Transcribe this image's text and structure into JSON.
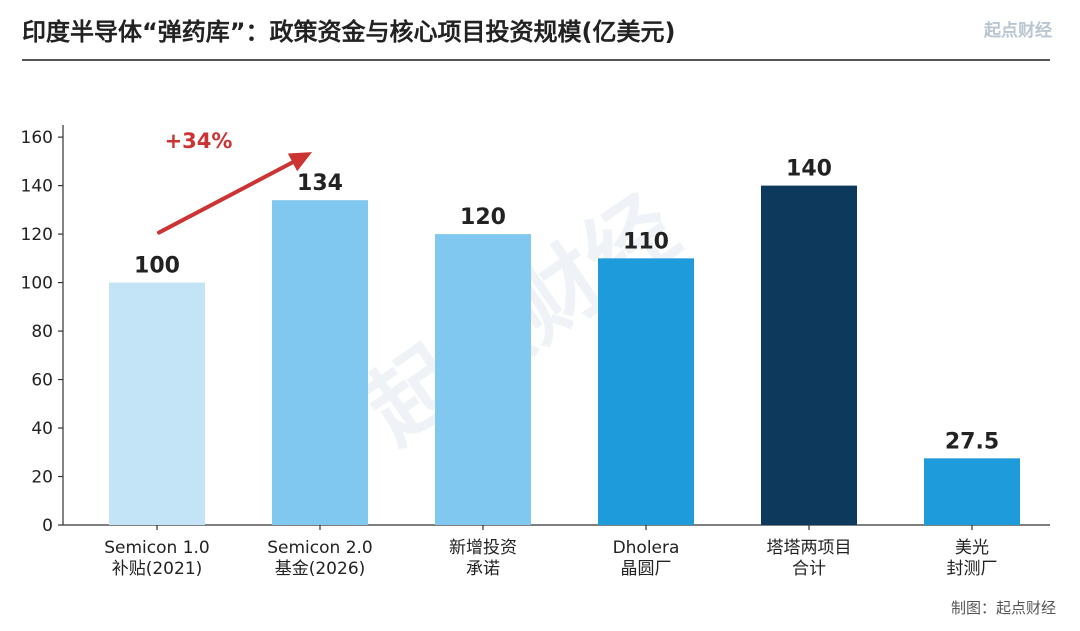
{
  "header": {
    "title": "印度半导体“弹药库”：政策资金与核心项目投资规模(亿美元)",
    "brand": "起点财经"
  },
  "footer": {
    "credit": "制图：起点财经"
  },
  "watermark": "起点财经",
  "chart_data": {
    "type": "bar",
    "title": "印度半导体“弹药库”：政策资金与核心项目投资规模(亿美元)",
    "categories": [
      [
        "Semicon 1.0",
        "补贴(2021)"
      ],
      [
        "Semicon 2.0",
        "基金(2026)"
      ],
      [
        "新增投资",
        "承诺"
      ],
      [
        "Dholera",
        "晶圆厂"
      ],
      [
        "塔塔两项目",
        "合计"
      ],
      [
        "美光",
        "封测厂"
      ]
    ],
    "values": [
      100,
      134,
      120,
      110,
      140,
      27.5
    ],
    "data_labels": [
      "100",
      "134",
      "120",
      "110",
      "140",
      "27.5"
    ],
    "colors": [
      "#c3e3f7",
      "#80c8ef",
      "#80c8ef",
      "#1e9bdb",
      "#0d3a5c",
      "#1e9bdb"
    ],
    "ylim": [
      0,
      165
    ],
    "yticks": [
      0,
      20,
      40,
      60,
      80,
      100,
      120,
      140,
      160
    ],
    "xlabel": "",
    "ylabel": "",
    "grid": false,
    "legend": "none",
    "annotation": {
      "text": "+34%",
      "from_category": 0,
      "to_category": 1,
      "color": "#cc3333"
    }
  }
}
